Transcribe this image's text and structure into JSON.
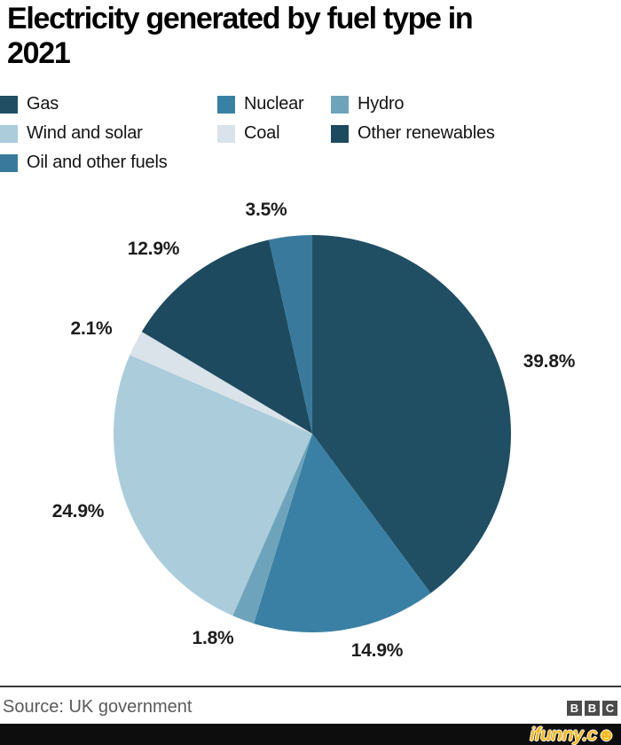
{
  "title_lines": [
    "Electricity generated by fuel type in",
    "2021"
  ],
  "chart_data": {
    "type": "pie",
    "title": "Electricity generated by fuel type in 2021",
    "unit": "%",
    "start_angle_deg": 0,
    "direction": "clockwise",
    "legend_position": "top",
    "series": [
      {
        "name": "Gas",
        "value": 39.8,
        "label": "39.8%",
        "color": "#204f64"
      },
      {
        "name": "Nuclear",
        "value": 14.9,
        "label": "14.9%",
        "color": "#3a80a4"
      },
      {
        "name": "Hydro",
        "value": 1.8,
        "label": "1.8%",
        "color": "#6da4bc"
      },
      {
        "name": "Wind and solar",
        "value": 24.9,
        "label": "24.9%",
        "color": "#abccda"
      },
      {
        "name": "Coal",
        "value": 2.1,
        "label": "2.1%",
        "color": "#d9e3e9"
      },
      {
        "name": "Other renewables",
        "value": 12.9,
        "label": "12.9%",
        "color": "#1d4a5f"
      },
      {
        "name": "Oil and other fuels",
        "value": 3.5,
        "label": "3.5%",
        "color": "#397a9c"
      }
    ]
  },
  "footer": {
    "source_label": "Source: UK government",
    "bbc_letters": [
      "B",
      "B",
      "C"
    ],
    "watermark_text": "ifunny.c",
    "watermark_smiley": "☻"
  },
  "colors": {
    "title_text": "#000000",
    "percent_label": "#1d1d1d",
    "source_text": "#5a5a5a",
    "divider": "#3a3a3a",
    "bbc_box": "#4c4c4c",
    "watermark_bar": "#0d0d0d",
    "watermark_yellow": "#fcba16"
  }
}
